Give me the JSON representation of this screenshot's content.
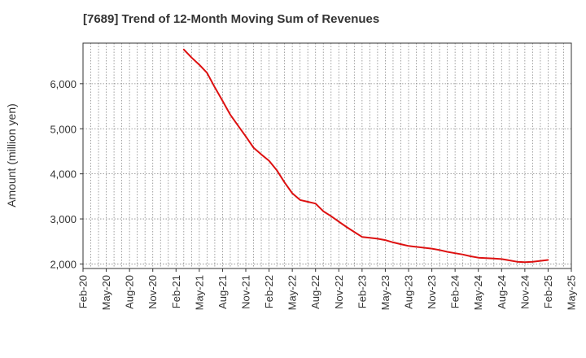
{
  "chart_data": {
    "type": "line",
    "title": "[7689]  Trend of 12-Month Moving Sum of Revenues",
    "xlabel": "",
    "ylabel": "Amount (million yen)",
    "x_ticks": [
      "Feb-20",
      "May-20",
      "Aug-20",
      "Nov-20",
      "Feb-21",
      "May-21",
      "Aug-21",
      "Nov-21",
      "Feb-22",
      "May-22",
      "Aug-22",
      "Nov-22",
      "Feb-23",
      "May-23",
      "Aug-23",
      "Nov-23",
      "Feb-24",
      "May-24",
      "Aug-24",
      "Nov-24",
      "Feb-25",
      "May-25"
    ],
    "y_ticks": [
      2000,
      3000,
      4000,
      5000,
      6000
    ],
    "y_tick_labels": [
      "2,000",
      "3,000",
      "4,000",
      "5,000",
      "6,000"
    ],
    "ylim": [
      1900,
      6900
    ],
    "xlim": [
      "Feb-20",
      "May-25"
    ],
    "grid": true,
    "series": [
      {
        "color": "#dd1111",
        "x": [
          "Mar-21",
          "Apr-21",
          "May-21",
          "Jun-21",
          "Jul-21",
          "Aug-21",
          "Sep-21",
          "Oct-21",
          "Nov-21",
          "Dec-21",
          "Jan-22",
          "Feb-22",
          "Mar-22",
          "Apr-22",
          "May-22",
          "Jun-22",
          "Jul-22",
          "Aug-22",
          "Sep-22",
          "Oct-22",
          "Nov-22",
          "Dec-22",
          "Jan-23",
          "Feb-23",
          "Mar-23",
          "Apr-23",
          "May-23",
          "Jun-23",
          "Jul-23",
          "Aug-23",
          "Sep-23",
          "Oct-23",
          "Nov-23",
          "Dec-23",
          "Jan-24",
          "Feb-24",
          "Mar-24",
          "Apr-24",
          "May-24",
          "Jun-24",
          "Jul-24",
          "Aug-24",
          "Sep-24",
          "Oct-24",
          "Nov-24",
          "Dec-24",
          "Jan-25",
          "Feb-25"
        ],
        "values": [
          6760,
          6580,
          6420,
          6240,
          5920,
          5620,
          5310,
          5070,
          4830,
          4580,
          4430,
          4290,
          4080,
          3810,
          3570,
          3420,
          3380,
          3340,
          3170,
          3060,
          2940,
          2820,
          2710,
          2600,
          2580,
          2560,
          2530,
          2480,
          2440,
          2400,
          2380,
          2360,
          2340,
          2310,
          2270,
          2240,
          2210,
          2170,
          2140,
          2130,
          2120,
          2110,
          2080,
          2050,
          2040,
          2050,
          2070,
          2090
        ]
      }
    ]
  }
}
